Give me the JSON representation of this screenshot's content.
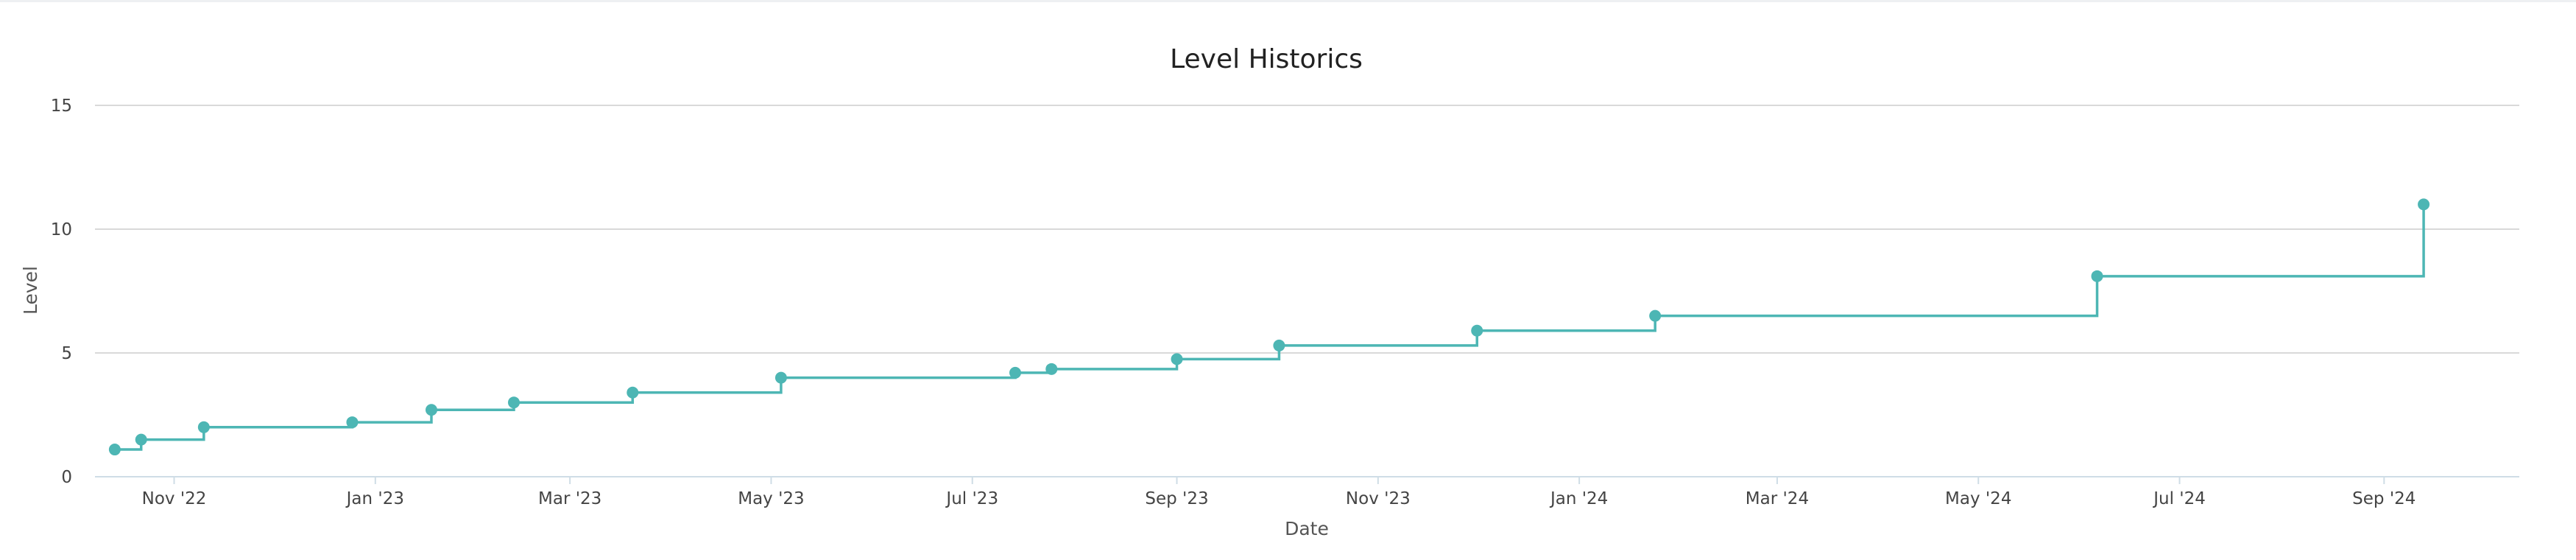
{
  "chart_data": {
    "type": "line",
    "step": true,
    "title": "Level Historics",
    "xlabel": "Date",
    "ylabel": "Level",
    "ylim": [
      0,
      15
    ],
    "yticks": [
      "0",
      "5",
      "10",
      "15"
    ],
    "xlim": [
      "2022-10-08",
      "2024-10-12"
    ],
    "xticks": [
      {
        "date": "2022-11-01",
        "label": "Nov '22"
      },
      {
        "date": "2023-01-01",
        "label": "Jan '23"
      },
      {
        "date": "2023-03-01",
        "label": "Mar '23"
      },
      {
        "date": "2023-05-01",
        "label": "May '23"
      },
      {
        "date": "2023-07-01",
        "label": "Jul '23"
      },
      {
        "date": "2023-09-01",
        "label": "Sep '23"
      },
      {
        "date": "2023-11-01",
        "label": "Nov '23"
      },
      {
        "date": "2024-01-01",
        "label": "Jan '24"
      },
      {
        "date": "2024-03-01",
        "label": "Mar '24"
      },
      {
        "date": "2024-05-01",
        "label": "May '24"
      },
      {
        "date": "2024-07-01",
        "label": "Jul '24"
      },
      {
        "date": "2024-09-01",
        "label": "Sep '24"
      }
    ],
    "grid": true,
    "legend": "none",
    "color": "#4db6b4",
    "series": [
      {
        "points": [
          {
            "x": "2022-10-14",
            "y": 1.1
          },
          {
            "x": "2022-10-22",
            "y": 1.5
          },
          {
            "x": "2022-11-10",
            "y": 2.0
          },
          {
            "x": "2022-12-25",
            "y": 2.2
          },
          {
            "x": "2023-01-18",
            "y": 2.7
          },
          {
            "x": "2023-02-12",
            "y": 3.0
          },
          {
            "x": "2023-03-20",
            "y": 3.4
          },
          {
            "x": "2023-05-04",
            "y": 4.0
          },
          {
            "x": "2023-07-14",
            "y": 4.2
          },
          {
            "x": "2023-07-25",
            "y": 4.35
          },
          {
            "x": "2023-09-01",
            "y": 4.75
          },
          {
            "x": "2023-10-02",
            "y": 5.3
          },
          {
            "x": "2023-12-01",
            "y": 5.9
          },
          {
            "x": "2024-01-24",
            "y": 6.5
          },
          {
            "x": "2024-06-06",
            "y": 8.1
          },
          {
            "x": "2024-09-13",
            "y": 11.0
          }
        ]
      }
    ]
  }
}
